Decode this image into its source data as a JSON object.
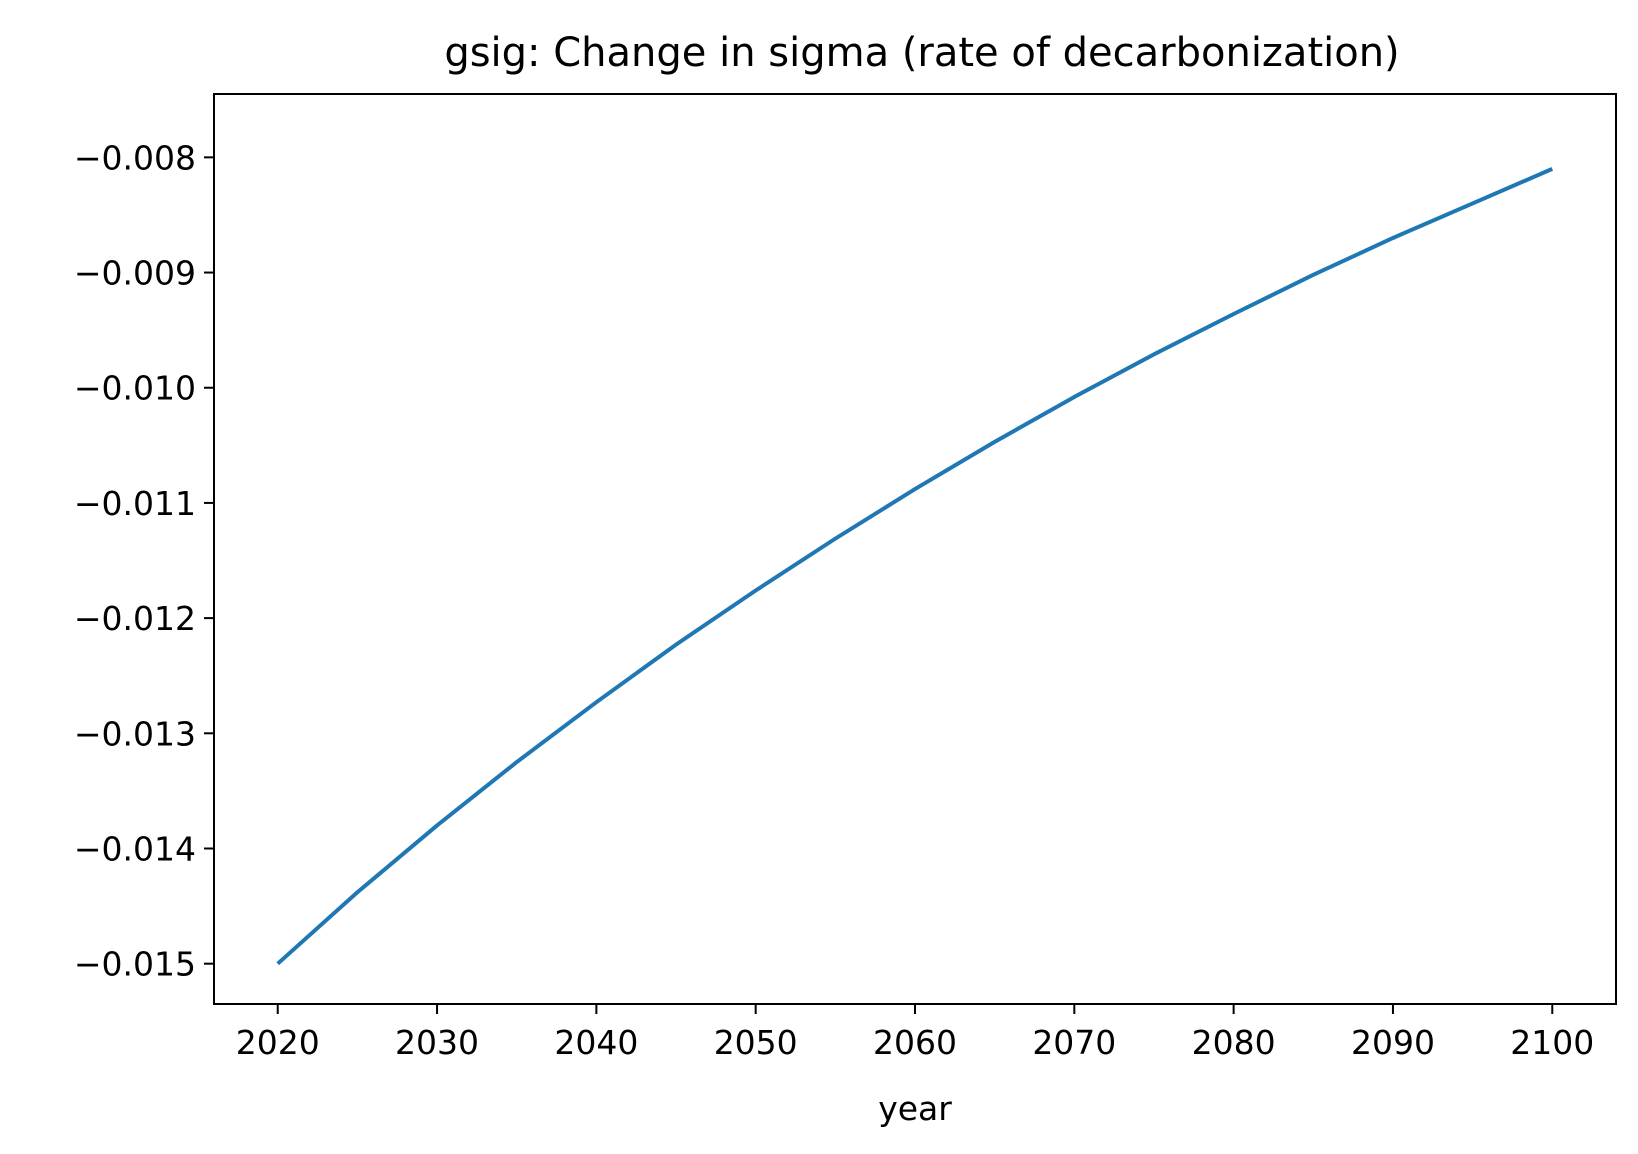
{
  "chart_data": {
    "type": "line",
    "title": "gsig: Change in sigma (rate of decarbonization)",
    "xlabel": "year",
    "ylabel": "",
    "xlim": [
      2016,
      2104
    ],
    "ylim": [
      -0.01535,
      -0.00745
    ],
    "xticks": [
      2020,
      2030,
      2040,
      2050,
      2060,
      2070,
      2080,
      2090,
      2100
    ],
    "xtick_labels": [
      "2020",
      "2030",
      "2040",
      "2050",
      "2060",
      "2070",
      "2080",
      "2090",
      "2100"
    ],
    "yticks": [
      -0.015,
      -0.014,
      -0.013,
      -0.012,
      -0.011,
      -0.01,
      -0.009,
      -0.008
    ],
    "ytick_labels": [
      "−0.015",
      "−0.014",
      "−0.013",
      "−0.012",
      "−0.011",
      "−0.010",
      "−0.009",
      "−0.008"
    ],
    "grid": false,
    "series": [
      {
        "color": "#1f77b4",
        "x": [
          2020,
          2025,
          2030,
          2035,
          2040,
          2045,
          2050,
          2055,
          2060,
          2065,
          2070,
          2075,
          2080,
          2085,
          2090,
          2095,
          2100
        ],
        "y": [
          -0.015,
          -0.01438,
          -0.0138,
          -0.01325,
          -0.01273,
          -0.01223,
          -0.01176,
          -0.01131,
          -0.01088,
          -0.01047,
          -0.01008,
          -0.00971,
          -0.00936,
          -0.00902,
          -0.0087,
          -0.0084,
          -0.0081
        ]
      }
    ]
  }
}
